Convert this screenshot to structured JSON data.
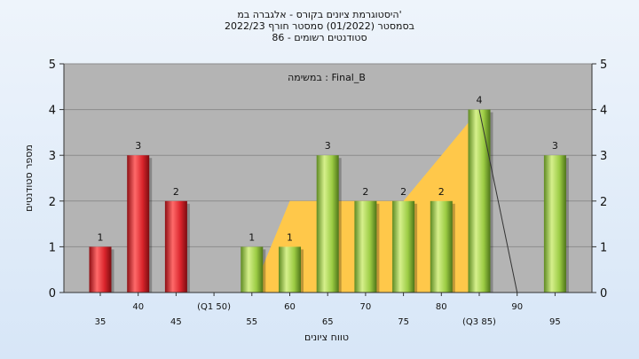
{
  "chart_data": {
    "type": "bar",
    "title_lines": [
      "היסטוגרמת ציונים בקורס - אלגברה במ'",
      "בסמסטר  (01/2022)  סמסטר חורף 2022/23",
      "סטודנטים רשומים - 86"
    ],
    "annotation": "במשימה : Final_B",
    "ylabel": "מספר סטודנטים",
    "xlabel": "טווח ציונים",
    "ylim": [
      0,
      5
    ],
    "yticks": [
      0,
      1,
      2,
      3,
      4,
      5
    ],
    "grid": true,
    "categories": [
      "35",
      "40",
      "45",
      "50",
      "55",
      "60",
      "65",
      "70",
      "75",
      "80",
      "85",
      "90",
      "95"
    ],
    "xtick_labels": [
      "35",
      "40",
      "45",
      "(Q1 50)",
      "55",
      "60",
      "65",
      "70",
      "75",
      "80",
      "(Q3 85)",
      "90",
      "95"
    ],
    "values": [
      1,
      3,
      2,
      0,
      1,
      1,
      3,
      2,
      2,
      2,
      4,
      0,
      3
    ],
    "bar_groups": [
      "below",
      "below",
      "below",
      "below",
      "above",
      "above",
      "above",
      "above",
      "above",
      "above",
      "above",
      "above",
      "above"
    ],
    "area_series": {
      "categories": [
        "55",
        "60",
        "65",
        "70",
        "75",
        "80",
        "85"
      ],
      "values": [
        0,
        2,
        2,
        2,
        2,
        3,
        4
      ]
    },
    "line_series": {
      "categories": [
        "85",
        "90"
      ],
      "values": [
        4,
        0
      ]
    },
    "colors": {
      "bar_low": "#d9242b",
      "bar_high": "#9ccc44",
      "area": "#ffc84a",
      "plot_bg": "#b4b4b4"
    }
  }
}
